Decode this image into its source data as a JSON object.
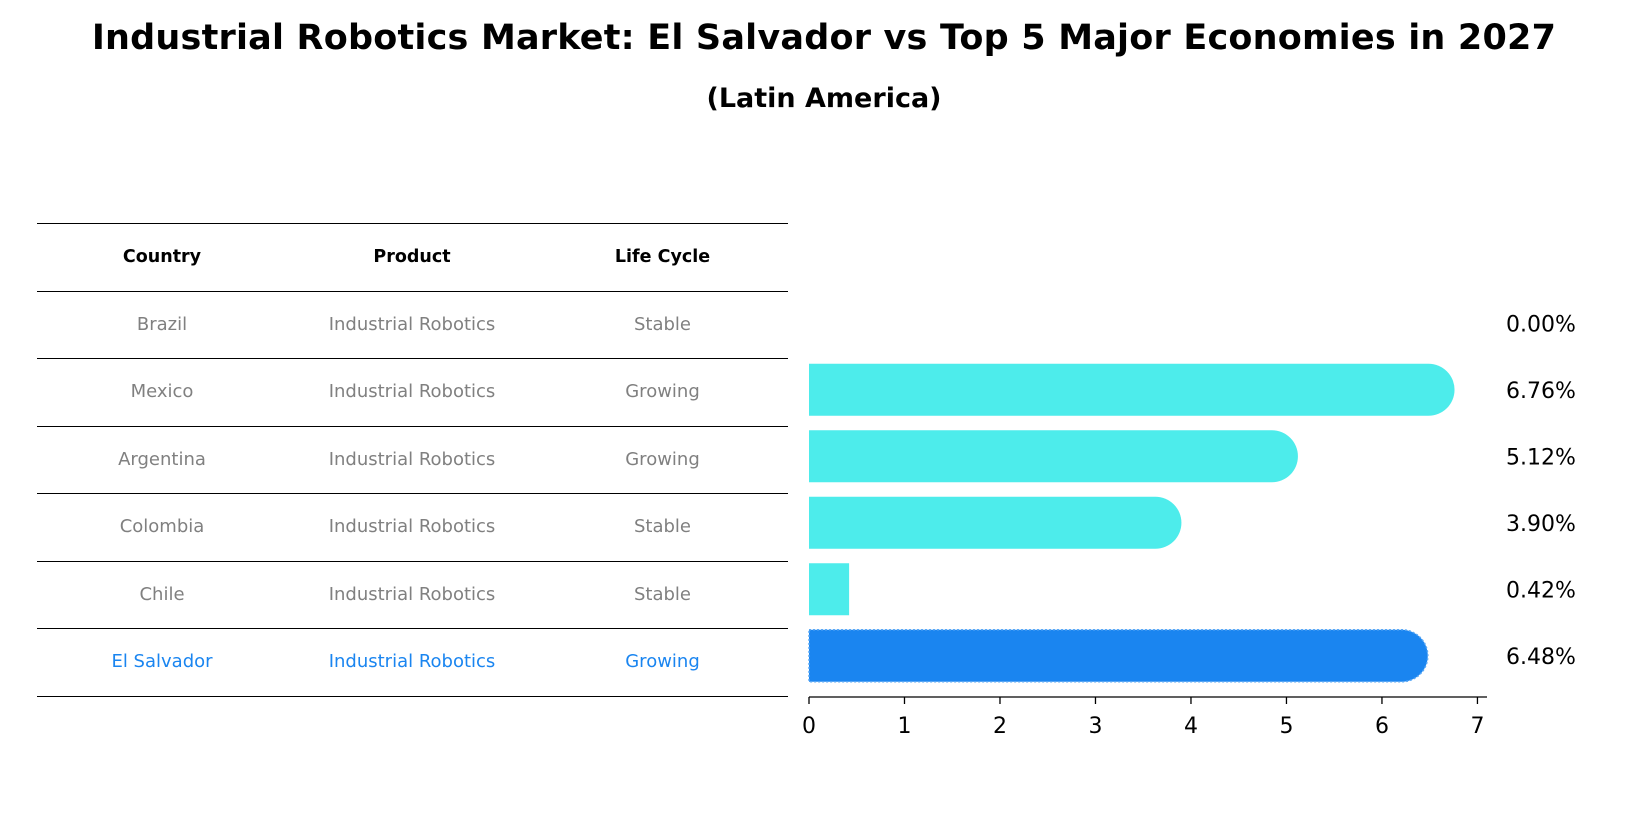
{
  "title": "Industrial Robotics Market: El Salvador vs Top 5 Major Economies in 2027",
  "subtitle": "(Latin America)",
  "table": {
    "headers": [
      "Country",
      "Product",
      "Life Cycle"
    ],
    "rows": [
      [
        "Brazil",
        "Industrial Robotics",
        "Stable"
      ],
      [
        "Mexico",
        "Industrial Robotics",
        "Growing"
      ],
      [
        "Argentina",
        "Industrial Robotics",
        "Growing"
      ],
      [
        "Colombia",
        "Industrial Robotics",
        "Stable"
      ],
      [
        "Chile",
        "Industrial Robotics",
        "Stable"
      ],
      [
        "El Salvador",
        "Industrial Robotics",
        "Growing"
      ]
    ],
    "highlight_row": 5
  },
  "chart_data": {
    "type": "bar",
    "orientation": "horizontal",
    "categories": [
      "Brazil",
      "Mexico",
      "Argentina",
      "Colombia",
      "Chile",
      "El Salvador"
    ],
    "values": [
      0.0,
      6.76,
      5.12,
      3.9,
      0.42,
      6.48
    ],
    "value_labels": [
      "0.00%",
      "6.76%",
      "5.12%",
      "3.90%",
      "0.42%",
      "6.48%"
    ],
    "xlim": [
      0,
      7.1
    ],
    "xticks": [
      0,
      1,
      2,
      3,
      4,
      5,
      6,
      7
    ],
    "highlight_index": 5,
    "grid": false,
    "colors": {
      "bar": "#4deceb",
      "highlight": "#1a85f0"
    }
  }
}
